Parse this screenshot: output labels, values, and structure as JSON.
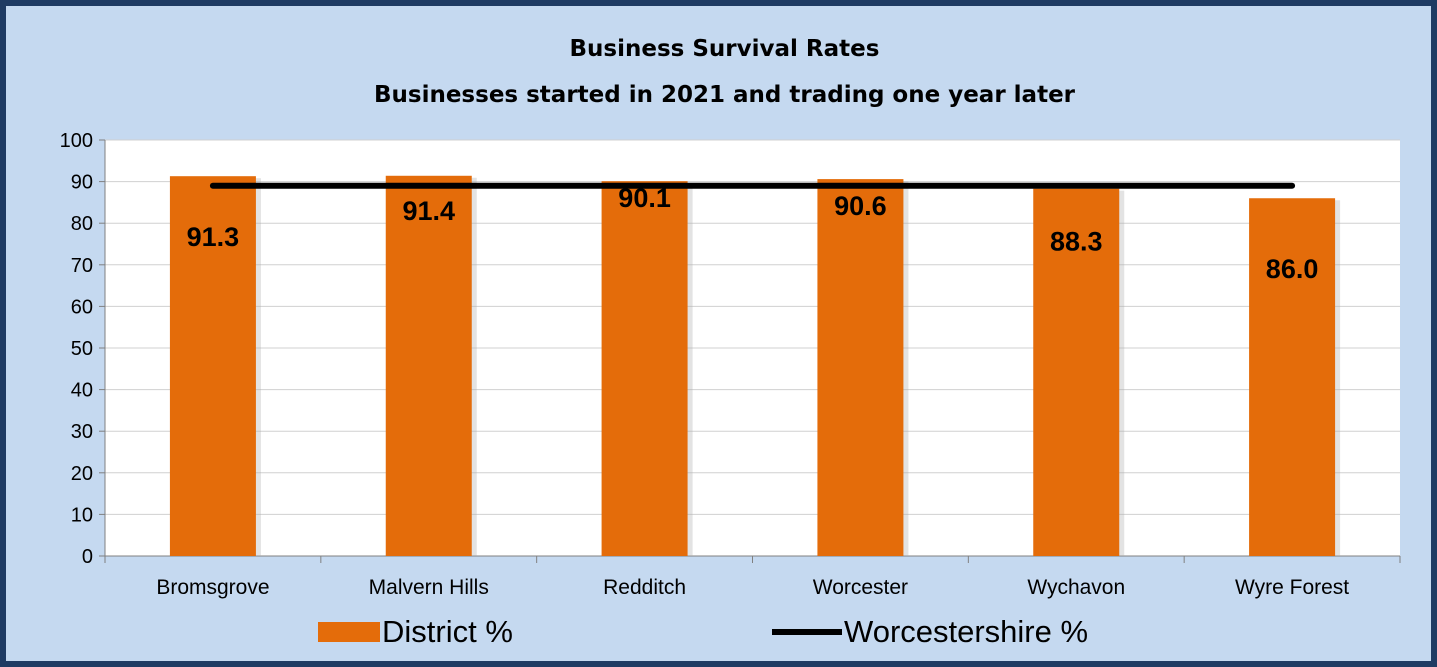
{
  "chart_data": {
    "type": "bar",
    "title": "Business Survival Rates",
    "subtitle": "Businesses started in 2021 and trading one year later",
    "categories": [
      "Bromsgrove",
      "Malvern Hills",
      "Redditch",
      "Worcester",
      "Wychavon",
      "Wyre Forest"
    ],
    "series": [
      {
        "name": "District %",
        "type": "bar",
        "values": [
          91.3,
          91.4,
          90.1,
          90.6,
          88.3,
          86.0
        ],
        "color": "#e46c0a"
      },
      {
        "name": "Worcestershire %",
        "type": "line",
        "values": [
          89,
          89,
          89,
          89,
          89,
          89
        ],
        "color": "#000000"
      }
    ],
    "data_labels": [
      "91.3",
      "91.4",
      "90.1",
      "90.6",
      "88.3",
      "86.0"
    ],
    "ylim": [
      0,
      100
    ],
    "yticks": [
      0,
      10,
      20,
      30,
      40,
      50,
      60,
      70,
      80,
      90,
      100
    ],
    "xlabel": "",
    "ylabel": "",
    "grid": true,
    "legend_position": "bottom"
  },
  "colors": {
    "frame_background": "#c5d9f0",
    "frame_border": "#1f3b63",
    "plot_background": "#ffffff",
    "gridline": "#d0d0d0"
  }
}
